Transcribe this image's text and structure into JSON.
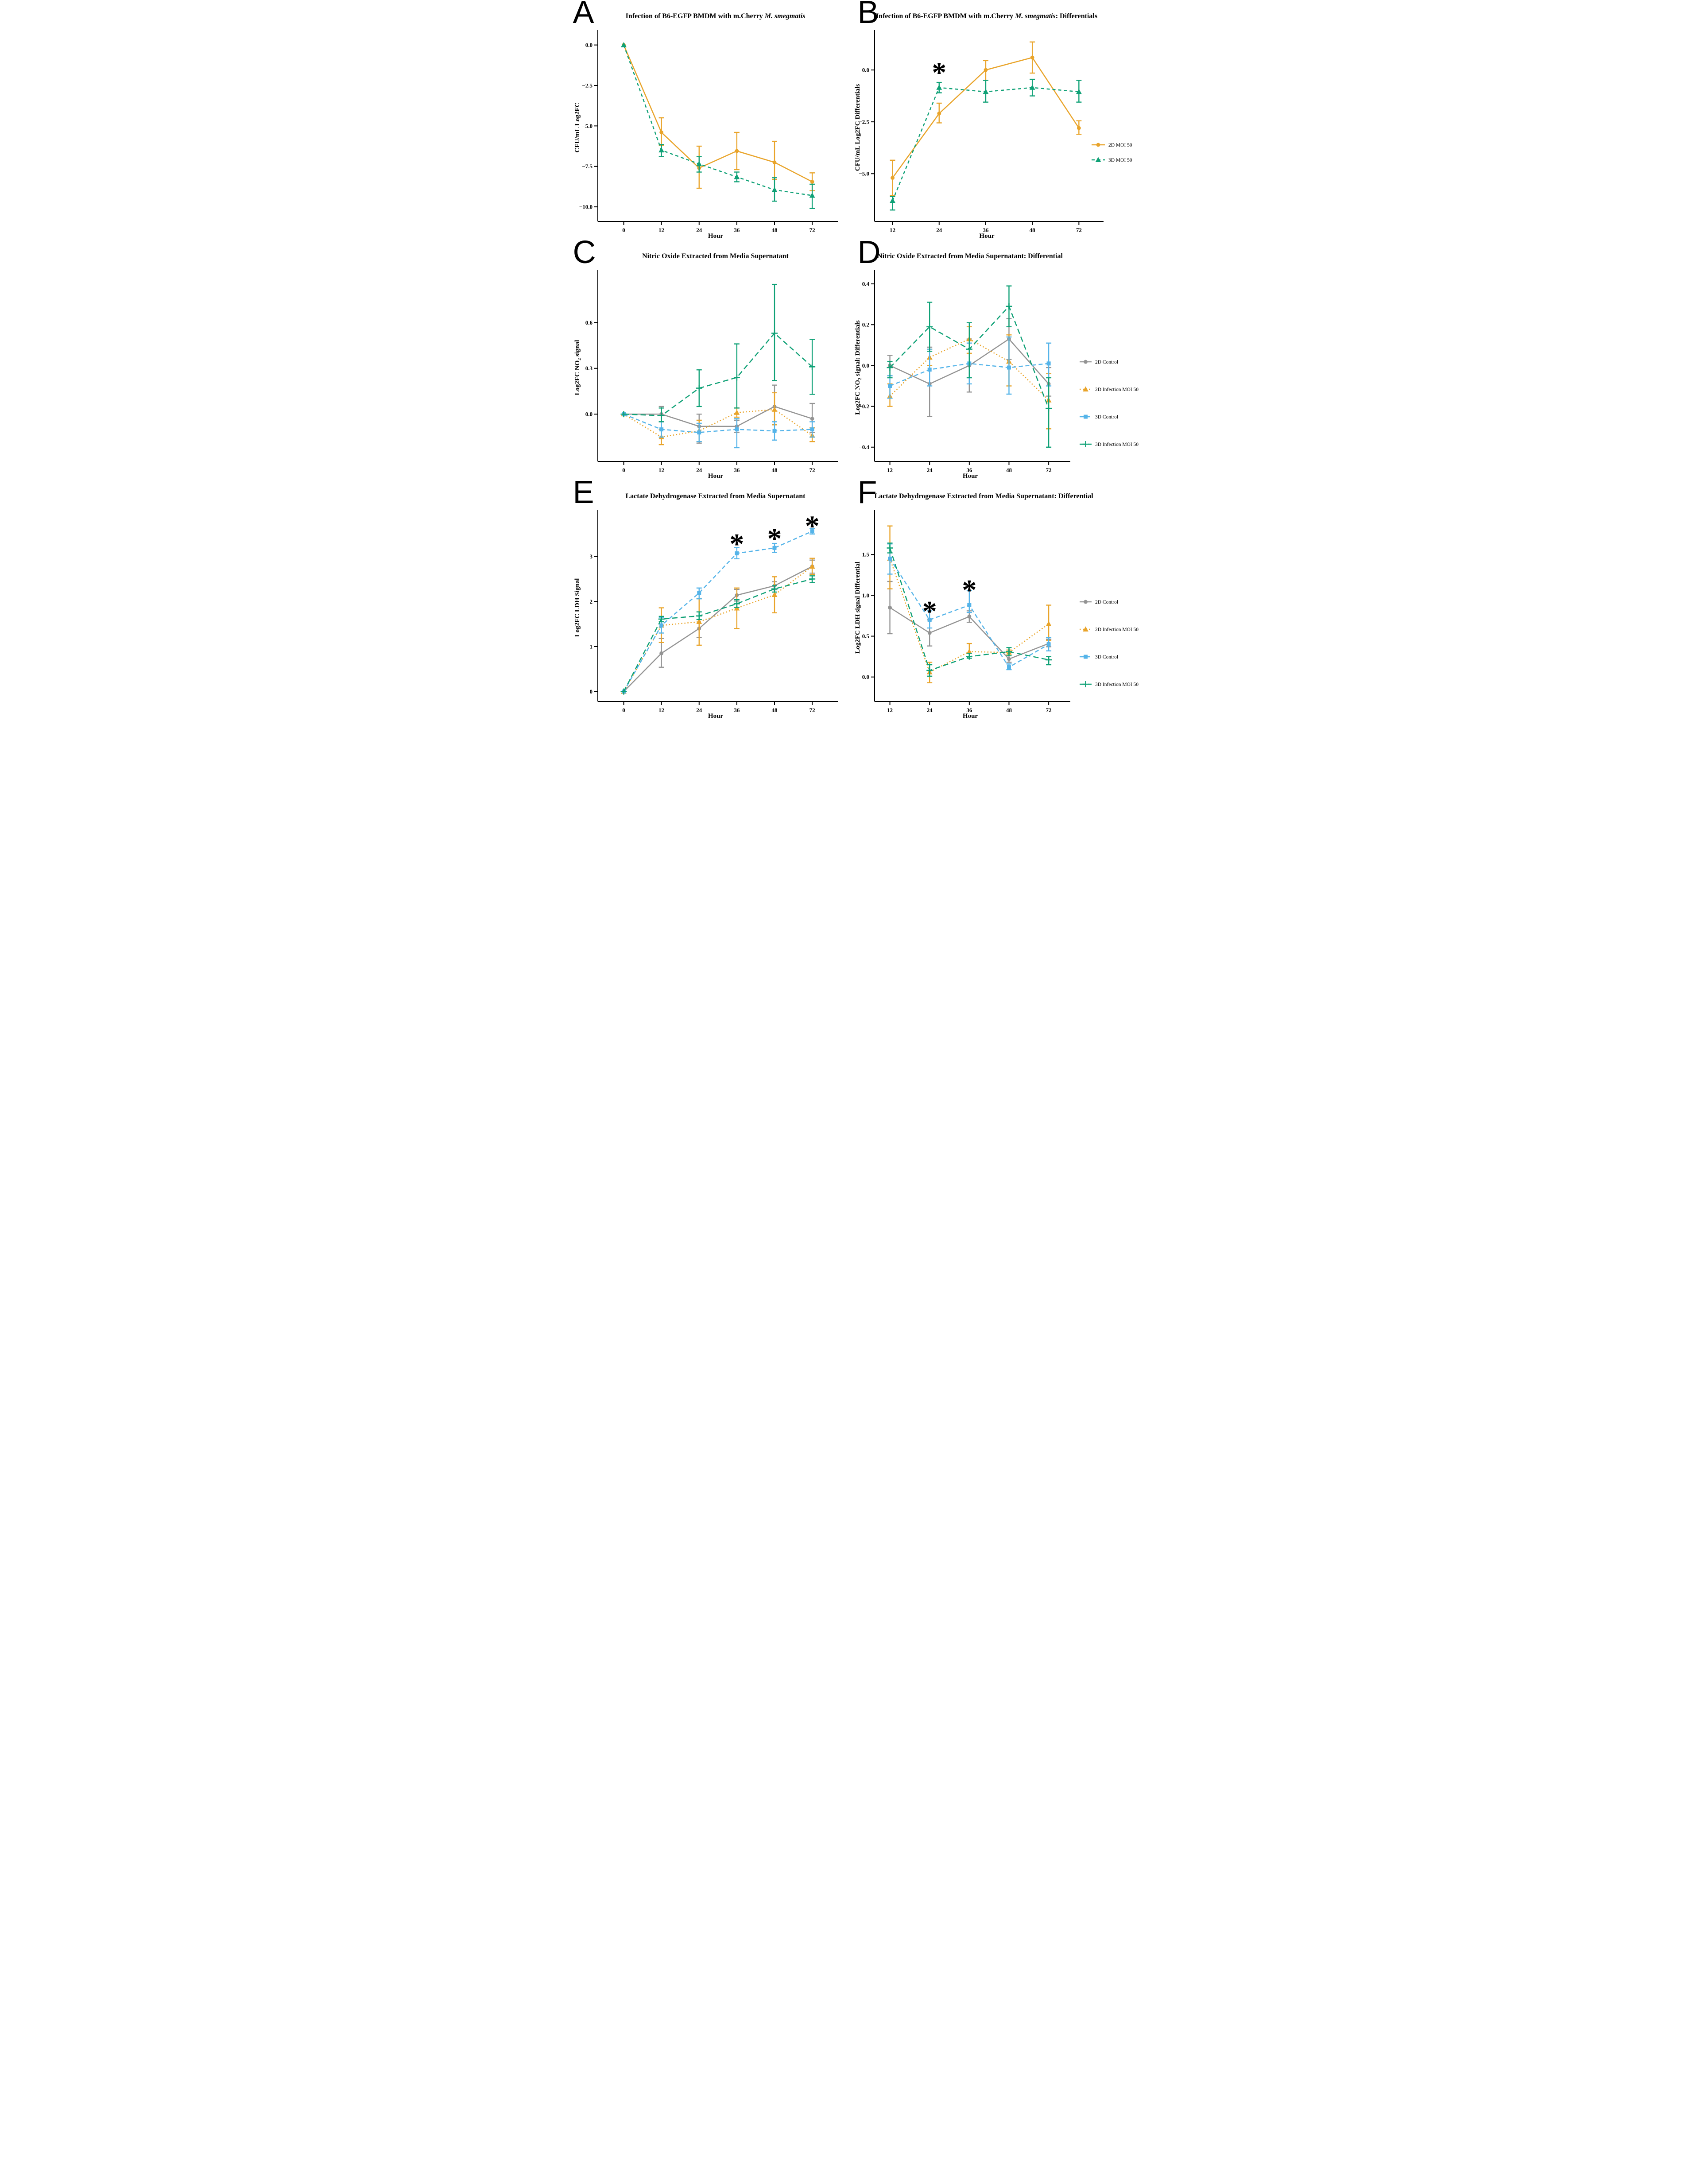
{
  "figure_caption_letters": [
    "A",
    "B",
    "C",
    "D",
    "E",
    "F"
  ],
  "colors": {
    "orange": "#E9A42A",
    "teal_green": "#0FA176",
    "light_blue": "#55B4E9",
    "gray": "#949494",
    "axis_black": "#000000"
  },
  "chart_data": [
    {
      "id": "A",
      "type": "line",
      "title_parts": [
        {
          "t": "Infection of B6-EGFP BMDM with m.Cherry "
        },
        {
          "t": "M. smegmatis",
          "italic": true
        }
      ],
      "xlabel": "Hour",
      "ylabel_parts": [
        {
          "t": "CFU/mL Log2FC"
        }
      ],
      "x": [
        "0",
        "12",
        "24",
        "36",
        "48",
        "72"
      ],
      "ylim": [
        -10.9,
        0.7
      ],
      "yticks": [
        {
          "v": 0,
          "t": "0.0"
        },
        {
          "v": -2.5,
          "t": "−2.5"
        },
        {
          "v": -5,
          "t": "−5.0"
        },
        {
          "v": -7.5,
          "t": "−7.5"
        },
        {
          "v": -10,
          "t": "−10.0"
        }
      ],
      "legend": false,
      "grid": false,
      "series": [
        {
          "name": "2D MOI 50",
          "color": "#E9A42A",
          "marker": "circle",
          "line": "solid",
          "values": [
            0,
            -5.4,
            -7.6,
            -6.55,
            -7.25,
            -8.45
          ],
          "err_lo": [
            0,
            -6.2,
            -8.85,
            -7.7,
            -8.3,
            -9.0
          ],
          "err_hi": [
            0,
            -4.5,
            -6.25,
            -5.4,
            -5.95,
            -7.9
          ]
        },
        {
          "name": "3D MOI 50",
          "color": "#0FA176",
          "marker": "triangle",
          "line": "dashed",
          "values": [
            0,
            -6.5,
            -7.35,
            -8.15,
            -8.95,
            -9.3
          ],
          "err_lo": [
            0,
            -6.9,
            -7.85,
            -8.45,
            -9.65,
            -10.1
          ],
          "err_hi": [
            0,
            -6.15,
            -6.9,
            -7.85,
            -8.2,
            -8.6
          ]
        }
      ],
      "annotations": []
    },
    {
      "id": "B",
      "type": "line",
      "title_parts": [
        {
          "t": "Infection of B6-EGFP BMDM with m.Cherry "
        },
        {
          "t": "M. smegmatis",
          "italic": true
        },
        {
          "t": ": Differentials"
        }
      ],
      "xlabel": "Hour",
      "ylabel_parts": [
        {
          "t": "CFU/mL Log2FC Differentials"
        }
      ],
      "x": [
        "12",
        "24",
        "36",
        "48",
        "72"
      ],
      "ylim": [
        -7.3,
        1.75
      ],
      "yticks": [
        {
          "v": 0,
          "t": "0.0"
        },
        {
          "v": -2.5,
          "t": "−2.5"
        },
        {
          "v": -5,
          "t": "−5.0"
        }
      ],
      "legend": true,
      "grid": false,
      "series": [
        {
          "name": "2D MOI 50",
          "color": "#E9A42A",
          "marker": "circle",
          "line": "solid",
          "values": [
            -5.2,
            -2.1,
            0,
            0.6,
            -2.8
          ],
          "err_lo": [
            -6.05,
            -2.55,
            -0.5,
            -0.15,
            -3.1
          ],
          "err_hi": [
            -4.35,
            -1.6,
            0.45,
            1.35,
            -2.45
          ]
        },
        {
          "name": "3D MOI 50",
          "color": "#0FA176",
          "marker": "triangle",
          "line": "dashed",
          "values": [
            -6.3,
            -0.85,
            -1.05,
            -0.85,
            -1.05
          ],
          "err_lo": [
            -6.75,
            -1.1,
            -1.55,
            -1.25,
            -1.55
          ],
          "err_hi": [
            -6.1,
            -0.6,
            -0.5,
            -0.45,
            -0.5
          ]
        }
      ],
      "annotations": [
        {
          "sym": "*",
          "x": "24",
          "y": 0.1
        }
      ]
    },
    {
      "id": "C",
      "type": "line",
      "title_parts": [
        {
          "t": "Nitric Oxide Extracted from Media Supernatant"
        }
      ],
      "xlabel": "Hour",
      "ylabel_parts": [
        {
          "t": "Log2FC NO"
        },
        {
          "t": "2",
          "sub": true
        },
        {
          "t": " signal"
        }
      ],
      "x": [
        "0",
        "12",
        "24",
        "36",
        "48",
        "72"
      ],
      "ylim": [
        -0.31,
        0.92
      ],
      "yticks": [
        {
          "v": 0,
          "t": "0.0"
        },
        {
          "v": 0.3,
          "t": "0.3"
        },
        {
          "v": 0.6,
          "t": "0.6"
        }
      ],
      "legend": false,
      "grid": false,
      "series": [
        {
          "name": "2D Control",
          "color": "#949494",
          "marker": "circle",
          "line": "solid",
          "values": [
            0,
            0,
            -0.08,
            -0.08,
            0.05,
            -0.03
          ],
          "err_lo": [
            0,
            -0.05,
            -0.19,
            -0.12,
            -0.07,
            -0.12
          ],
          "err_hi": [
            0,
            0.05,
            0,
            -0.04,
            0.19,
            0.07
          ]
        },
        {
          "name": "2D Infection MOI 50",
          "color": "#E9A42A",
          "marker": "triangle",
          "line": "dotted",
          "values": [
            0,
            -0.15,
            -0.11,
            0.01,
            0.03,
            -0.14
          ],
          "err_lo": [
            0,
            -0.2,
            -0.18,
            -0.02,
            -0.07,
            -0.18
          ],
          "err_hi": [
            0,
            -0.1,
            -0.04,
            0.04,
            0.14,
            -0.09
          ]
        },
        {
          "name": "3D Control",
          "color": "#55B4E9",
          "marker": "square",
          "line": "mdash",
          "values": [
            0,
            -0.1,
            -0.12,
            -0.1,
            -0.11,
            -0.1
          ],
          "err_lo": [
            0,
            -0.15,
            -0.18,
            -0.22,
            -0.17,
            -0.15
          ],
          "err_hi": [
            0,
            -0.05,
            -0.06,
            -0.03,
            -0.05,
            -0.05
          ]
        },
        {
          "name": "3D Infection MOI 50",
          "color": "#0FA176",
          "marker": "plus",
          "line": "longdash",
          "values": [
            0,
            -0.01,
            0.17,
            0.24,
            0.53,
            0.31
          ],
          "err_lo": [
            0,
            -0.05,
            0.05,
            0.04,
            0.22,
            0.13
          ],
          "err_hi": [
            0,
            0.04,
            0.29,
            0.46,
            0.85,
            0.49
          ]
        }
      ],
      "annotations": []
    },
    {
      "id": "D",
      "type": "line",
      "title_parts": [
        {
          "t": "Nitric Oxide Extracted from Media Supernatant: Differential"
        }
      ],
      "xlabel": "Hour",
      "ylabel_parts": [
        {
          "t": "Log2FC NO"
        },
        {
          "t": "2",
          "sub": true
        },
        {
          "t": " signal: Differentials"
        }
      ],
      "x": [
        "12",
        "24",
        "36",
        "48",
        "72"
      ],
      "ylim": [
        -0.47,
        0.45
      ],
      "yticks": [
        {
          "v": 0.4,
          "t": "0.4"
        },
        {
          "v": 0.2,
          "t": "0.2"
        },
        {
          "v": 0,
          "t": "0.0"
        },
        {
          "v": -0.2,
          "t": "−0.2"
        },
        {
          "v": -0.4,
          "t": "−0.4"
        }
      ],
      "legend": true,
      "grid": false,
      "series": [
        {
          "name": "2D Control",
          "color": "#949494",
          "marker": "circle",
          "line": "solid",
          "values": [
            0,
            -0.09,
            0,
            0.13,
            -0.09
          ],
          "err_lo": [
            -0.05,
            -0.25,
            -0.13,
            0.03,
            -0.15
          ],
          "err_hi": [
            0.05,
            0.09,
            0.13,
            0.23,
            -0.01
          ]
        },
        {
          "name": "2D Infection MOI 50",
          "color": "#E9A42A",
          "marker": "triangle",
          "line": "dotted",
          "values": [
            -0.15,
            0.04,
            0.13,
            0.02,
            -0.17
          ],
          "err_lo": [
            -0.2,
            0,
            0.06,
            -0.1,
            -0.31
          ],
          "err_hi": [
            -0.09,
            0.08,
            0.19,
            0.15,
            -0.04
          ]
        },
        {
          "name": "3D Control",
          "color": "#55B4E9",
          "marker": "square",
          "line": "mdash",
          "values": [
            -0.1,
            -0.02,
            0.01,
            -0.01,
            0.01
          ],
          "err_lo": [
            -0.16,
            -0.1,
            -0.09,
            -0.14,
            -0.1
          ],
          "err_hi": [
            -0.05,
            0.08,
            0.11,
            0.14,
            0.11
          ]
        },
        {
          "name": "3D Infection MOI 50",
          "color": "#0FA176",
          "marker": "plus",
          "line": "longdash",
          "values": [
            -0.01,
            0.19,
            0.08,
            0.29,
            -0.21
          ],
          "err_lo": [
            -0.06,
            0.07,
            -0.06,
            0.19,
            -0.4
          ],
          "err_hi": [
            0.02,
            0.31,
            0.21,
            0.39,
            -0.06
          ]
        }
      ],
      "annotations": []
    },
    {
      "id": "E",
      "type": "line",
      "title_parts": [
        {
          "t": "Lactate Dehydrogenase Extracted from Media Supernatant"
        }
      ],
      "xlabel": "Hour",
      "ylabel_parts": [
        {
          "t": "Log2FC LDH Signal"
        }
      ],
      "x": [
        "0",
        "12",
        "24",
        "36",
        "48",
        "72"
      ],
      "ylim": [
        -0.22,
        3.95
      ],
      "yticks": [
        {
          "v": 0,
          "t": "0"
        },
        {
          "v": 1,
          "t": "1"
        },
        {
          "v": 2,
          "t": "2"
        },
        {
          "v": 3,
          "t": "3"
        }
      ],
      "legend": false,
      "grid": false,
      "series": [
        {
          "name": "2D Control",
          "color": "#949494",
          "marker": "circle",
          "line": "solid",
          "values": [
            0,
            0.85,
            1.4,
            2.14,
            2.35,
            2.78
          ],
          "err_lo": [
            0,
            0.54,
            1.2,
            2.01,
            2.26,
            2.63
          ],
          "err_hi": [
            0,
            1.18,
            1.6,
            2.27,
            2.44,
            2.92
          ]
        },
        {
          "name": "2D Infection MOI 50",
          "color": "#E9A42A",
          "marker": "triangle",
          "line": "dotted",
          "values": [
            0,
            1.47,
            1.55,
            1.85,
            2.15,
            2.78
          ],
          "err_lo": [
            0,
            1.09,
            1.03,
            1.4,
            1.75,
            2.6
          ],
          "err_hi": [
            0,
            1.86,
            2.07,
            2.3,
            2.55,
            2.96
          ]
        },
        {
          "name": "3D Control",
          "color": "#55B4E9",
          "marker": "square",
          "line": "mdash",
          "values": [
            0,
            1.47,
            2.19,
            3.07,
            3.19,
            3.56
          ],
          "err_lo": [
            0,
            1.3,
            2.06,
            2.95,
            3.09,
            3.5
          ],
          "err_hi": [
            0,
            1.64,
            2.3,
            3.2,
            3.29,
            3.62
          ]
        },
        {
          "name": "3D Infection MOI 50",
          "color": "#0FA176",
          "marker": "plus",
          "line": "longdash",
          "values": [
            0,
            1.61,
            1.68,
            1.95,
            2.28,
            2.5
          ],
          "err_lo": [
            0,
            1.55,
            1.6,
            1.87,
            2.21,
            2.42
          ],
          "err_hi": [
            0,
            1.67,
            1.77,
            2.04,
            2.35,
            2.57
          ]
        }
      ],
      "annotations": [
        {
          "sym": "*",
          "x": "36",
          "y": 3.38
        },
        {
          "sym": "*",
          "x": "48",
          "y": 3.5
        },
        {
          "sym": "*",
          "x": "72",
          "y": 3.78
        }
      ]
    },
    {
      "id": "F",
      "type": "line",
      "title_parts": [
        {
          "t": "Lactate Dehydrogenase Extracted from Media Supernatant: Differential"
        }
      ],
      "xlabel": "Hour",
      "ylabel_parts": [
        {
          "t": "Log2FC LDH signal Differential"
        }
      ],
      "x": [
        "12",
        "24",
        "36",
        "48",
        "72"
      ],
      "ylim": [
        -0.3,
        2.0
      ],
      "yticks": [
        {
          "v": 1.5,
          "t": "1.5"
        },
        {
          "v": 1,
          "t": "1.0"
        },
        {
          "v": 0.5,
          "t": "0.5"
        },
        {
          "v": 0,
          "t": "0.0"
        }
      ],
      "legend": true,
      "grid": false,
      "series": [
        {
          "name": "2D Control",
          "color": "#949494",
          "marker": "circle",
          "line": "solid",
          "values": [
            0.85,
            0.54,
            0.74,
            0.22,
            0.41
          ],
          "err_lo": [
            0.53,
            0.38,
            0.67,
            0.18,
            0.37
          ],
          "err_hi": [
            1.17,
            0.7,
            0.81,
            0.26,
            0.46
          ]
        },
        {
          "name": "2D Infection MOI 50",
          "color": "#E9A42A",
          "marker": "triangle",
          "line": "dotted",
          "values": [
            1.45,
            0.06,
            0.31,
            0.3,
            0.65
          ],
          "err_lo": [
            1.08,
            -0.07,
            0.25,
            0.26,
            0.45
          ],
          "err_hi": [
            1.85,
            0.18,
            0.41,
            0.33,
            0.88
          ]
        },
        {
          "name": "3D Control",
          "color": "#55B4E9",
          "marker": "square",
          "line": "mdash",
          "values": [
            1.45,
            0.7,
            0.88,
            0.12,
            0.4
          ],
          "err_lo": [
            1.26,
            0.6,
            0.79,
            0.09,
            0.32
          ],
          "err_hi": [
            1.63,
            0.81,
            1.06,
            0.16,
            0.48
          ]
        },
        {
          "name": "3D Infection MOI 50",
          "color": "#0FA176",
          "marker": "plus",
          "line": "longdash",
          "values": [
            1.58,
            0.08,
            0.25,
            0.31,
            0.21
          ],
          "err_lo": [
            1.52,
            0.01,
            0.23,
            0.26,
            0.15
          ],
          "err_hi": [
            1.64,
            0.15,
            0.29,
            0.36,
            0.25
          ]
        }
      ],
      "annotations": [
        {
          "sym": "*",
          "x": "24",
          "y": 0.86
        },
        {
          "sym": "*",
          "x": "36",
          "y": 1.12
        }
      ]
    }
  ]
}
